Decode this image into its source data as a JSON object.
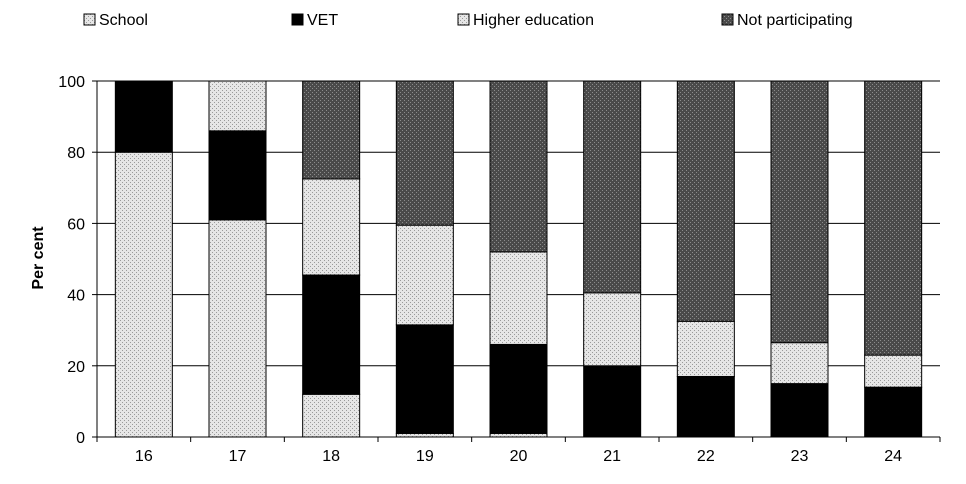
{
  "chart_data": {
    "type": "bar",
    "stacked": true,
    "categories": [
      "16",
      "17",
      "18",
      "19",
      "20",
      "21",
      "22",
      "23",
      "24"
    ],
    "series": [
      {
        "name": "School",
        "values": [
          80,
          61,
          12,
          1,
          1,
          0,
          0,
          0,
          0
        ],
        "pattern": "light-dots"
      },
      {
        "name": "VET",
        "values": [
          20,
          25,
          33.5,
          30.5,
          25,
          20,
          17,
          15,
          14
        ],
        "color": "#000000"
      },
      {
        "name": "Higher education",
        "values": [
          0,
          14,
          27,
          28,
          26,
          20.5,
          15.5,
          11.5,
          9
        ],
        "pattern": "light-dots"
      },
      {
        "name": "Not participating",
        "values": [
          0,
          0,
          27.5,
          40.5,
          48,
          59.5,
          67.5,
          73.5,
          77
        ],
        "pattern": "dark-dots"
      }
    ],
    "title": "",
    "xlabel": "",
    "ylabel": "Per cent",
    "ylim": [
      0,
      100
    ],
    "yticks": [
      0,
      20,
      40,
      60,
      80,
      100
    ],
    "grid": true,
    "legend": "top"
  }
}
